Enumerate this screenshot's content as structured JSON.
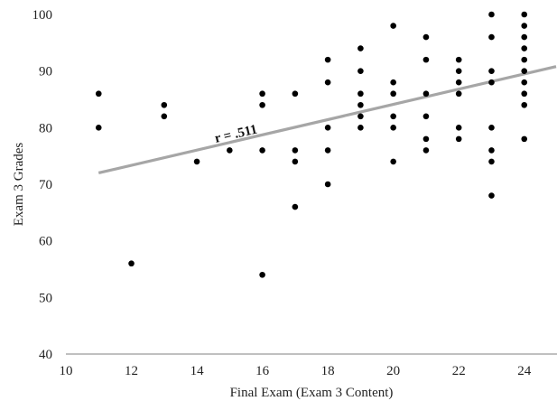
{
  "chart_data": {
    "type": "scatter",
    "title": "",
    "xlabel": "Final Exam (Exam 3 Content)",
    "ylabel": "Exam 3 Grades",
    "xlim": [
      10,
      25
    ],
    "ylim": [
      40,
      100
    ],
    "xticks": [
      10,
      12,
      14,
      16,
      18,
      20,
      22,
      24
    ],
    "yticks": [
      40,
      50,
      60,
      70,
      80,
      90,
      100
    ],
    "grid": false,
    "legend": "none",
    "colors": {
      "points": "#000000",
      "trendline": "#a6a6a6",
      "axis": "#808080"
    },
    "annotation": "r = .511",
    "trendline": {
      "x": [
        11,
        25
      ],
      "y": [
        72,
        90.8
      ]
    },
    "points": [
      {
        "x": 11,
        "y": 86
      },
      {
        "x": 11,
        "y": 80
      },
      {
        "x": 12,
        "y": 56
      },
      {
        "x": 13,
        "y": 84
      },
      {
        "x": 13,
        "y": 82
      },
      {
        "x": 14,
        "y": 74
      },
      {
        "x": 15,
        "y": 76
      },
      {
        "x": 16,
        "y": 86
      },
      {
        "x": 16,
        "y": 84
      },
      {
        "x": 16,
        "y": 76
      },
      {
        "x": 16,
        "y": 54
      },
      {
        "x": 17,
        "y": 86
      },
      {
        "x": 17,
        "y": 76
      },
      {
        "x": 17,
        "y": 74
      },
      {
        "x": 17,
        "y": 66
      },
      {
        "x": 18,
        "y": 92
      },
      {
        "x": 18,
        "y": 88
      },
      {
        "x": 18,
        "y": 80
      },
      {
        "x": 18,
        "y": 76
      },
      {
        "x": 18,
        "y": 70
      },
      {
        "x": 19,
        "y": 94
      },
      {
        "x": 19,
        "y": 90
      },
      {
        "x": 19,
        "y": 86
      },
      {
        "x": 19,
        "y": 84
      },
      {
        "x": 19,
        "y": 82
      },
      {
        "x": 19,
        "y": 80
      },
      {
        "x": 20,
        "y": 98
      },
      {
        "x": 20,
        "y": 88
      },
      {
        "x": 20,
        "y": 86
      },
      {
        "x": 20,
        "y": 82
      },
      {
        "x": 20,
        "y": 80
      },
      {
        "x": 20,
        "y": 74
      },
      {
        "x": 21,
        "y": 96
      },
      {
        "x": 21,
        "y": 92
      },
      {
        "x": 21,
        "y": 86
      },
      {
        "x": 21,
        "y": 82
      },
      {
        "x": 21,
        "y": 78
      },
      {
        "x": 21,
        "y": 76
      },
      {
        "x": 22,
        "y": 92
      },
      {
        "x": 22,
        "y": 90
      },
      {
        "x": 22,
        "y": 88
      },
      {
        "x": 22,
        "y": 86
      },
      {
        "x": 22,
        "y": 80
      },
      {
        "x": 22,
        "y": 78
      },
      {
        "x": 23,
        "y": 100
      },
      {
        "x": 23,
        "y": 96
      },
      {
        "x": 23,
        "y": 90
      },
      {
        "x": 23,
        "y": 88
      },
      {
        "x": 23,
        "y": 80
      },
      {
        "x": 23,
        "y": 76
      },
      {
        "x": 23,
        "y": 74
      },
      {
        "x": 23,
        "y": 68
      },
      {
        "x": 24,
        "y": 100
      },
      {
        "x": 24,
        "y": 98
      },
      {
        "x": 24,
        "y": 96
      },
      {
        "x": 24,
        "y": 94
      },
      {
        "x": 24,
        "y": 92
      },
      {
        "x": 24,
        "y": 90
      },
      {
        "x": 24,
        "y": 88
      },
      {
        "x": 24,
        "y": 86
      },
      {
        "x": 24,
        "y": 84
      },
      {
        "x": 24,
        "y": 78
      }
    ]
  }
}
